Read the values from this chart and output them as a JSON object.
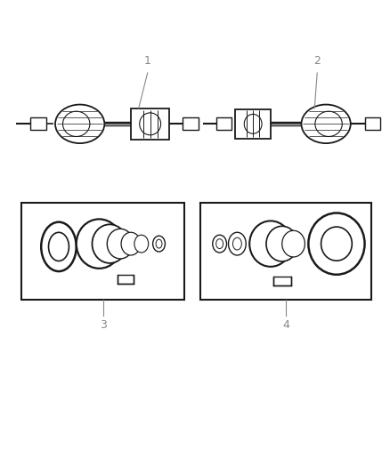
{
  "background_color": "#ffffff",
  "line_color": "#1a1a1a",
  "label_color": "#888888",
  "fig_width": 4.38,
  "fig_height": 5.33,
  "dpi": 100
}
